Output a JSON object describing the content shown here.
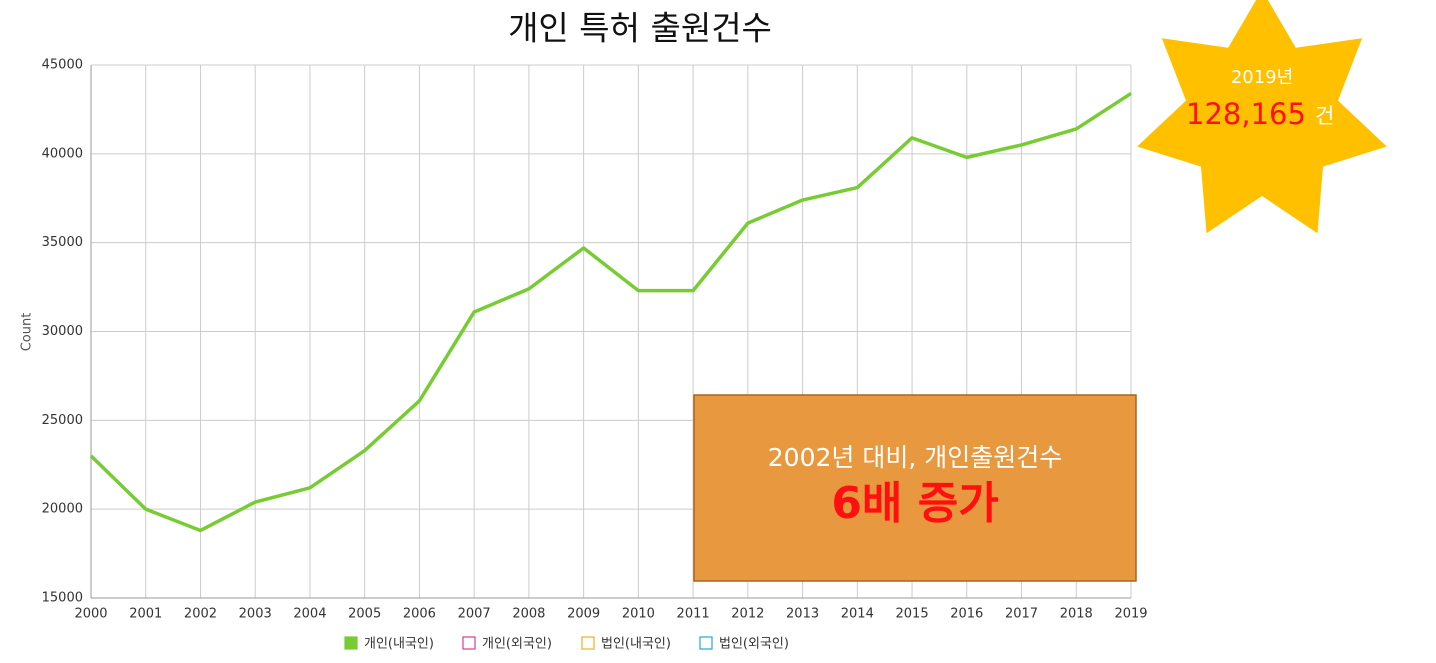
{
  "chart_data": {
    "type": "line",
    "title": "개인 특허 출원건수",
    "y_label": "Count",
    "x": [
      2000,
      2001,
      2002,
      2003,
      2004,
      2005,
      2006,
      2007,
      2008,
      2009,
      2010,
      2011,
      2012,
      2013,
      2014,
      2015,
      2016,
      2017,
      2018,
      2019
    ],
    "series": [
      {
        "name": "개인(내국인)",
        "color": "#77cc33",
        "values": [
          23000,
          20000,
          18800,
          20400,
          21200,
          23300,
          26100,
          31100,
          32400,
          34700,
          32300,
          32300,
          36100,
          37400,
          38100,
          40900,
          39800,
          40500,
          41400,
          43400
        ]
      },
      {
        "name": "개인(외국인)",
        "color": "#e0388c",
        "values": [
          null,
          null,
          null,
          null,
          null,
          null,
          null,
          null,
          null,
          null,
          null,
          null,
          null,
          null,
          null,
          null,
          null,
          null,
          null,
          null
        ]
      },
      {
        "name": "법인(내국인)",
        "color": "#f0b020",
        "values": [
          null,
          null,
          null,
          null,
          null,
          null,
          null,
          null,
          null,
          null,
          null,
          null,
          null,
          null,
          null,
          null,
          null,
          null,
          null,
          null
        ]
      },
      {
        "name": "법인(외국인)",
        "color": "#22a8d8",
        "values": [
          null,
          null,
          null,
          null,
          null,
          null,
          null,
          null,
          null,
          null,
          null,
          null,
          null,
          null,
          null,
          null,
          null,
          null,
          null,
          null
        ]
      }
    ],
    "xlim": [
      2000,
      2019
    ],
    "xticks": [
      2000,
      2001,
      2002,
      2003,
      2004,
      2005,
      2006,
      2007,
      2008,
      2009,
      2010,
      2011,
      2012,
      2013,
      2014,
      2015,
      2016,
      2017,
      2018,
      2019
    ],
    "ylim": [
      15000,
      45000
    ],
    "yticks": [
      15000,
      20000,
      25000,
      30000,
      35000,
      40000,
      45000
    ],
    "grid": true,
    "legend": "bottom",
    "annotations": {
      "star": {
        "year": "2019년",
        "count": "128,165",
        "unit": "건"
      },
      "box": {
        "line1": "2002년 대비, 개인출원건수",
        "line2": "6배 증가"
      }
    }
  }
}
